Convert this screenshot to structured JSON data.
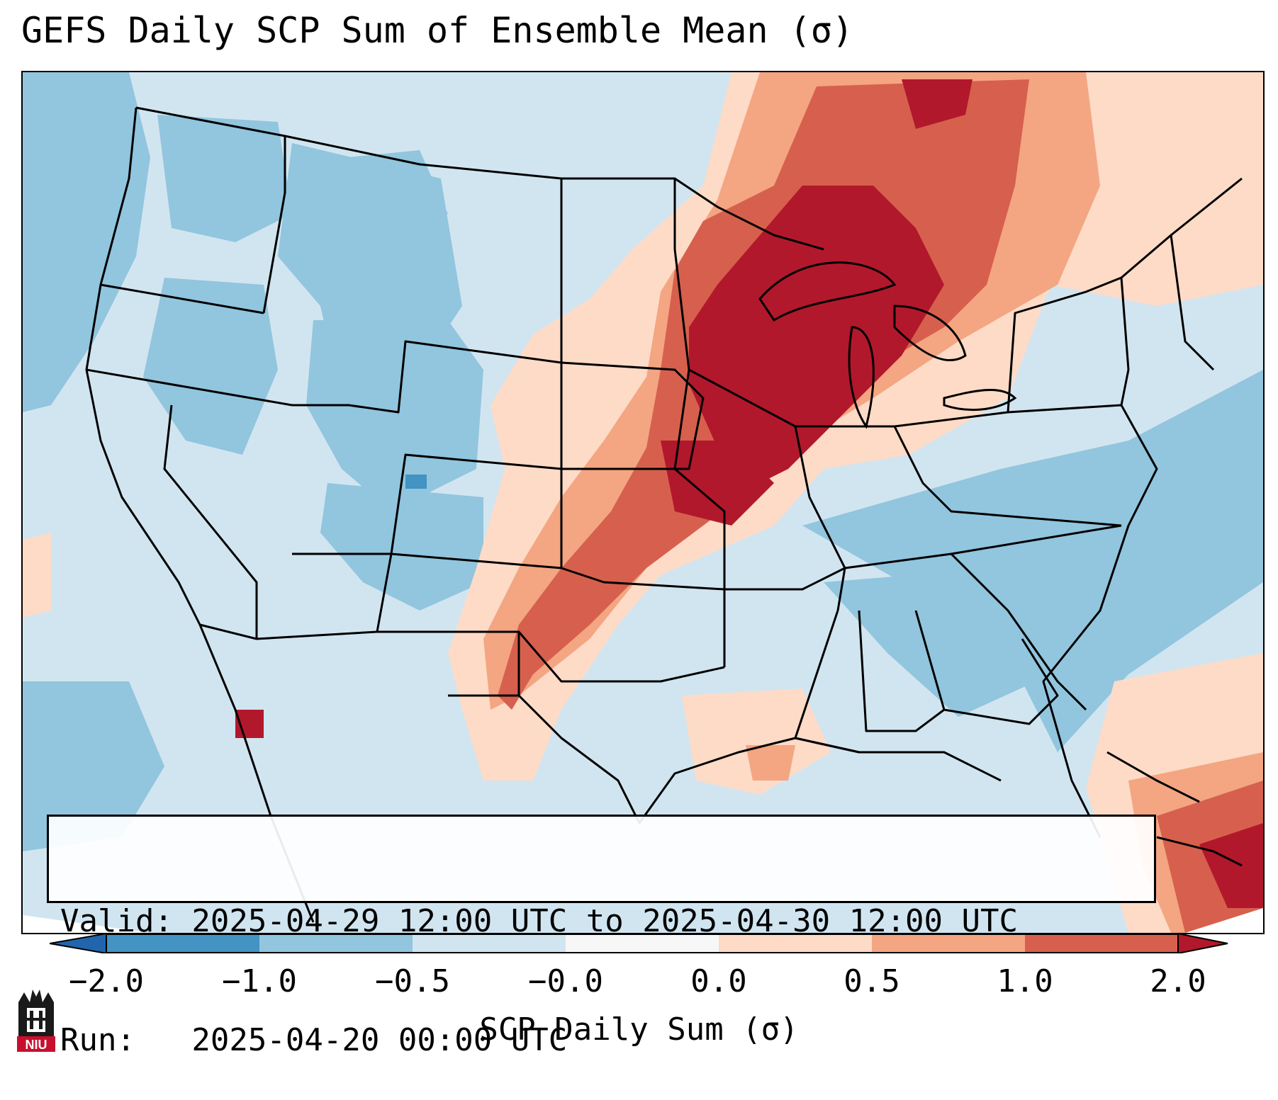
{
  "title": "GEFS Daily SCP Sum of Ensemble Mean (σ)",
  "info": {
    "valid_label": "Valid: 2025-04-29 12:00 UTC to 2025-04-30 12:00 UTC",
    "run_label": "Run:   2025-04-20 00:00 UTC"
  },
  "colorbar": {
    "label": "SCP Daily Sum (σ)",
    "ticks": [
      "−2.0",
      "−1.0",
      "−0.5",
      "−0.0",
      "0.0",
      "0.5",
      "1.0",
      "2.0"
    ],
    "bins": [
      {
        "range": "< -2.0",
        "color": "#2166ac"
      },
      {
        "range": "-2.0 to -1.0",
        "color": "#4393c3"
      },
      {
        "range": "-1.0 to -0.5",
        "color": "#92c5de"
      },
      {
        "range": "-0.5 to -0.0",
        "color": "#d1e5f0"
      },
      {
        "range": "-0.0 to 0.0",
        "color": "#f7f7f7"
      },
      {
        "range": "0.0 to 0.5",
        "color": "#fddbc7"
      },
      {
        "range": "0.5 to 1.0",
        "color": "#f4a582"
      },
      {
        "range": "1.0 to 2.0",
        "color": "#d6604d"
      },
      {
        "range": "> 2.0",
        "color": "#b2182b"
      }
    ]
  },
  "logo": {
    "text": "NIU",
    "icon": "niu-castle-logo"
  }
}
